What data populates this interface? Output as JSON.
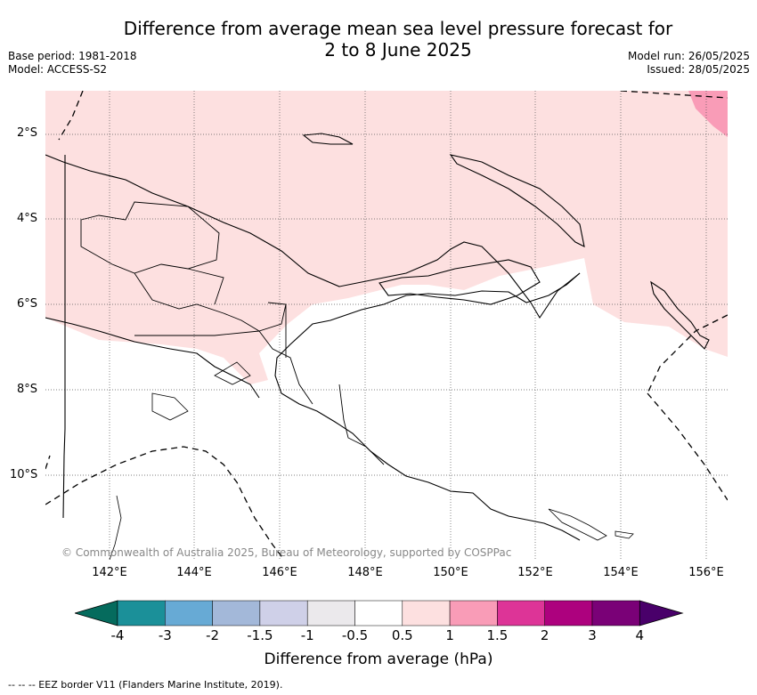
{
  "title_line1": "Difference from average mean sea level pressure forecast for",
  "title_line2": "2 to 8 June 2025",
  "base_period": "Base period: 1981-2018",
  "model": "Model: ACCESS-S2",
  "model_run": "Model run: 26/05/2025",
  "issued": "Issued: 28/05/2025",
  "lat_labels": [
    "2°S",
    "4°S",
    "6°S",
    "8°S",
    "10°S"
  ],
  "lon_labels": [
    "142°E",
    "144°E",
    "146°E",
    "148°E",
    "150°E",
    "152°E",
    "154°E",
    "156°E"
  ],
  "copyright": "© Commonwealth of Australia 2025, Bureau of Meteorology, supported by COSPPac",
  "colorbar": {
    "ticks": [
      "-4",
      "-3",
      "-2",
      "-1.5",
      "-1",
      "-0.5",
      "0.5",
      "1",
      "1.5",
      "2",
      "3",
      "4"
    ],
    "colors": [
      "#056b5d",
      "#1b9099",
      "#67aad5",
      "#a3b8d9",
      "#cfd0e8",
      "#ebe9ec",
      "#ffffff",
      "#fde0e0",
      "#f99cb7",
      "#dd3497",
      "#ad017e",
      "#7a0177",
      "#49006a"
    ],
    "title": "Difference from average (hPa)"
  },
  "eez_note": "--  --  -- EEZ border V11 (Flanders Marine Institute, 2019).",
  "map_data": {
    "extent_lon": [
      141.0,
      156.5
    ],
    "extent_lat": [
      -11.4,
      -1.0
    ],
    "anomaly_0p5_to_1_color": "#fde0e0",
    "anomaly_1_to_1p5_color": "#f99cb7"
  }
}
